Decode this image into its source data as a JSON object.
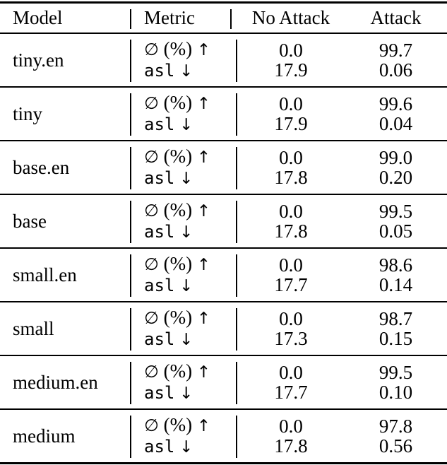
{
  "page": {
    "background": "#ffffff",
    "text_color": "#000000"
  },
  "table": {
    "headers": {
      "model": "Model",
      "metric": "Metric",
      "no_attack": "No Attack",
      "attack": "Attack"
    },
    "metric": {
      "row1_symbol": "∅",
      "row1_label": "(%)",
      "row1_arrow": "↑",
      "row2_label": "asl",
      "row2_arrow": "↓"
    },
    "rows": [
      {
        "model": "tiny.en",
        "no_attack_pct": "0.0",
        "attack_pct": "99.7",
        "no_attack_asl": "17.9",
        "attack_asl": "0.06"
      },
      {
        "model": "tiny",
        "no_attack_pct": "0.0",
        "attack_pct": "99.6",
        "no_attack_asl": "17.9",
        "attack_asl": "0.04"
      },
      {
        "model": "base.en",
        "no_attack_pct": "0.0",
        "attack_pct": "99.0",
        "no_attack_asl": "17.8",
        "attack_asl": "0.20"
      },
      {
        "model": "base",
        "no_attack_pct": "0.0",
        "attack_pct": "99.5",
        "no_attack_asl": "17.8",
        "attack_asl": "0.05"
      },
      {
        "model": "small.en",
        "no_attack_pct": "0.0",
        "attack_pct": "98.6",
        "no_attack_asl": "17.7",
        "attack_asl": "0.14"
      },
      {
        "model": "small",
        "no_attack_pct": "0.0",
        "attack_pct": "98.7",
        "no_attack_asl": "17.3",
        "attack_asl": "0.15"
      },
      {
        "model": "medium.en",
        "no_attack_pct": "0.0",
        "attack_pct": "99.5",
        "no_attack_asl": "17.7",
        "attack_asl": "0.10"
      },
      {
        "model": "medium",
        "no_attack_pct": "0.0",
        "attack_pct": "97.8",
        "no_attack_asl": "17.8",
        "attack_asl": "0.56"
      }
    ]
  }
}
